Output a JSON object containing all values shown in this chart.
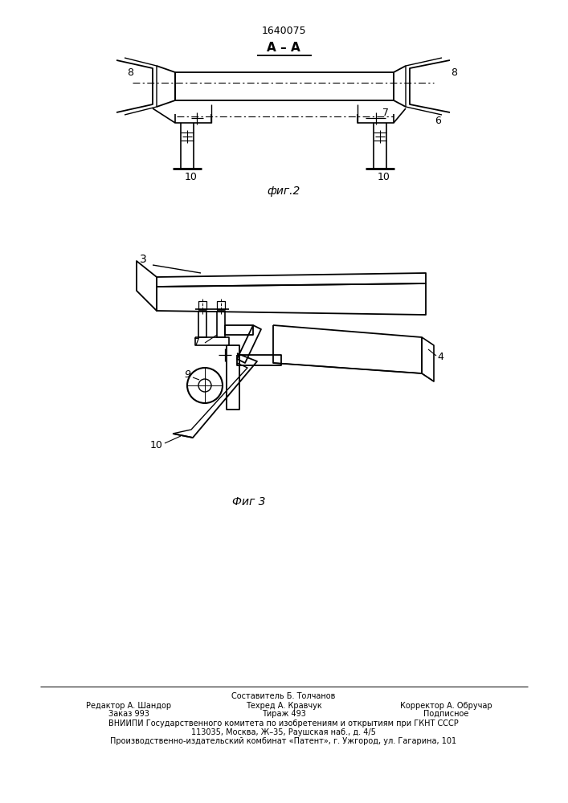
{
  "patent_number": "1640075",
  "section_label": "А – А",
  "fig2_label": "фиг.2",
  "fig3_label": "Фиг 3",
  "footer_line0_center": "Составитель Б. Толчанов",
  "footer_line1_left": "Редактор А. Шандор",
  "footer_line1_center": "Техред А. Кравчук",
  "footer_line1_right": "Корректор А. Обручар",
  "footer_line2_left": "Заказ 993",
  "footer_line2_center": "Тираж 493",
  "footer_line2_right": "Подписное",
  "footer_line3": "ВНИИПИ Государственного комитета по изобретениям и открытиям при ГКНТ СССР",
  "footer_line4": "113035, Москва, Ж–35, Раушская наб., д. 4/5",
  "footer_line5": "Производственно-издательский комбинат «Патент», г. Ужгород, ул. Гагарина, 101",
  "bg_color": "#ffffff"
}
